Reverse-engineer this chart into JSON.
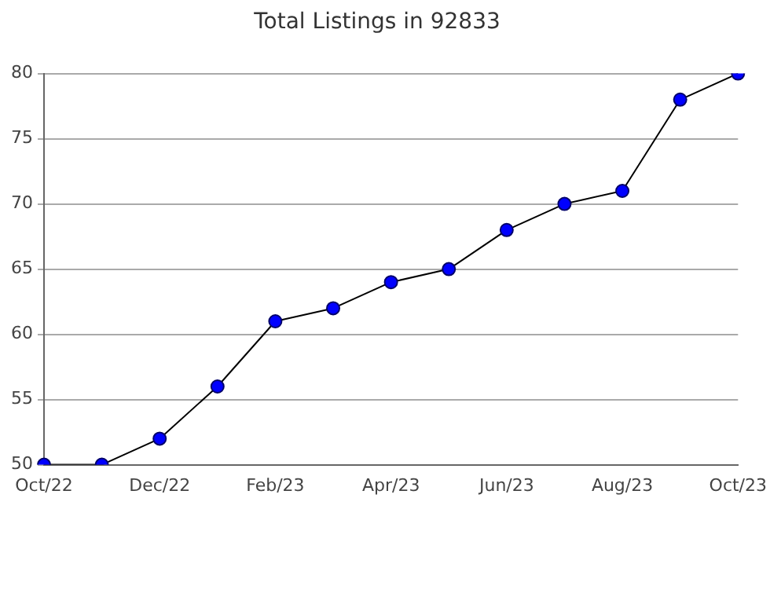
{
  "chart_data": {
    "type": "line",
    "title": "Total Listings in 92833",
    "categories": [
      "Oct/22",
      null,
      "Dec/22",
      null,
      "Feb/23",
      null,
      "Apr/23",
      null,
      "Jun/23",
      null,
      "Aug/23",
      null,
      "Oct/23"
    ],
    "series": [
      {
        "color": "#0000ff",
        "values": [
          50,
          50,
          52,
          56,
          61,
          62,
          64,
          65,
          68,
          70,
          71,
          78,
          80
        ]
      }
    ],
    "ylim": [
      50,
      80
    ],
    "yticks": [
      50,
      55,
      60,
      65,
      70,
      75,
      80
    ],
    "grid": "y",
    "marker": "circle",
    "line_style": "solid",
    "legend": false
  }
}
